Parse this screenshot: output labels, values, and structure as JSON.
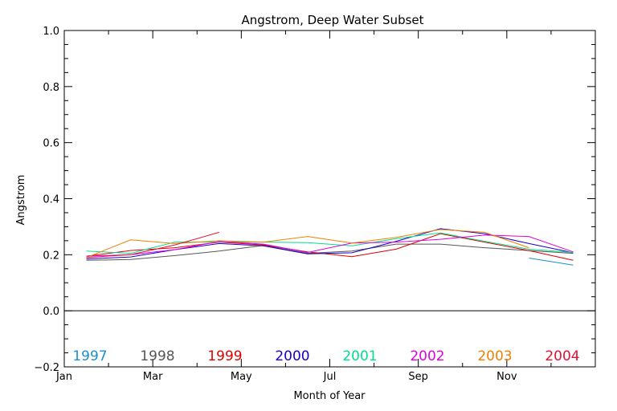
{
  "chart_data": {
    "type": "line",
    "title": "Angstrom, Deep Water Subset",
    "xlabel": "Month of Year",
    "ylabel": "Angstrom",
    "xlim": [
      1,
      13
    ],
    "ylim": [
      -0.2,
      1.0
    ],
    "x_ticks": [
      {
        "x": 1,
        "label": "Jan"
      },
      {
        "x": 3,
        "label": "Mar"
      },
      {
        "x": 5,
        "label": "May"
      },
      {
        "x": 7,
        "label": "Jul"
      },
      {
        "x": 9,
        "label": "Sep"
      },
      {
        "x": 11,
        "label": "Nov"
      }
    ],
    "y_ticks": [
      {
        "y": -0.2,
        "label": "−0.2"
      },
      {
        "y": 0.0,
        "label": "0.0"
      },
      {
        "y": 0.2,
        "label": "0.2"
      },
      {
        "y": 0.4,
        "label": "0.4"
      },
      {
        "y": 0.6,
        "label": "0.6"
      },
      {
        "y": 0.8,
        "label": "0.8"
      },
      {
        "y": 1.0,
        "label": "1.0"
      }
    ],
    "zero_line": true,
    "legend_position": "bottom",
    "series": [
      {
        "name": "1997",
        "color": "#1a8fd0",
        "x": [
          11.5,
          12.5
        ],
        "y": [
          0.188,
          0.163
        ]
      },
      {
        "name": "1998",
        "color": "#555555",
        "x": [
          1.5,
          2.5,
          3.5,
          4.5,
          5.5,
          6.5,
          7.5,
          8.5,
          9.5,
          10.5,
          11.5,
          12.5
        ],
        "y": [
          0.18,
          0.183,
          0.197,
          0.213,
          0.233,
          0.205,
          0.213,
          0.238,
          0.238,
          0.225,
          0.215,
          0.205
        ]
      },
      {
        "name": "1999",
        "color": "#e00000",
        "x": [
          1.5,
          2.5,
          3.5,
          4.5,
          5.5,
          6.5,
          7.5,
          8.5,
          9.5,
          10.5,
          11.5,
          12.5
        ],
        "y": [
          0.195,
          0.215,
          0.225,
          0.245,
          0.235,
          0.21,
          0.193,
          0.22,
          0.275,
          0.245,
          0.215,
          0.18
        ]
      },
      {
        "name": "2000",
        "color": "#1a00c8",
        "x": [
          1.5,
          2.5,
          3.5,
          4.5,
          5.5,
          6.5,
          7.5,
          8.5,
          9.5,
          10.5,
          11.5,
          12.5
        ],
        "y": [
          0.185,
          0.192,
          0.218,
          0.24,
          0.232,
          0.203,
          0.207,
          0.248,
          0.293,
          0.275,
          0.24,
          0.207
        ]
      },
      {
        "name": "2001",
        "color": "#00e08a",
        "x": [
          1.5,
          2.5,
          3.5,
          4.5,
          5.5,
          6.5,
          7.5,
          8.5,
          9.5,
          10.5,
          11.5,
          12.5
        ],
        "y": [
          0.213,
          0.205,
          0.245,
          0.245,
          0.245,
          0.243,
          0.232,
          0.257,
          0.278,
          0.248,
          0.22,
          0.208
        ]
      },
      {
        "name": "2002",
        "color": "#e000e0",
        "x": [
          1.5,
          2.5,
          3.5,
          4.5,
          5.5,
          6.5,
          7.5,
          8.5,
          9.5,
          10.5,
          11.5,
          12.5
        ],
        "y": [
          0.195,
          0.2,
          0.218,
          0.247,
          0.238,
          0.208,
          0.242,
          0.245,
          0.255,
          0.27,
          0.265,
          0.21
        ]
      },
      {
        "name": "2003",
        "color": "#f08000",
        "x": [
          1.5,
          2.5,
          3.5,
          4.5,
          5.5,
          6.5,
          7.5,
          8.5,
          9.5,
          10.5,
          11.5
        ],
        "y": [
          0.19,
          0.253,
          0.24,
          0.25,
          0.245,
          0.265,
          0.242,
          0.262,
          0.29,
          0.28,
          0.225
        ]
      },
      {
        "name": "2004",
        "color": "#e01030",
        "x": [
          1.5,
          2.5,
          3.5,
          4.5
        ],
        "y": [
          0.19,
          0.2,
          0.235,
          0.28
        ]
      }
    ]
  }
}
